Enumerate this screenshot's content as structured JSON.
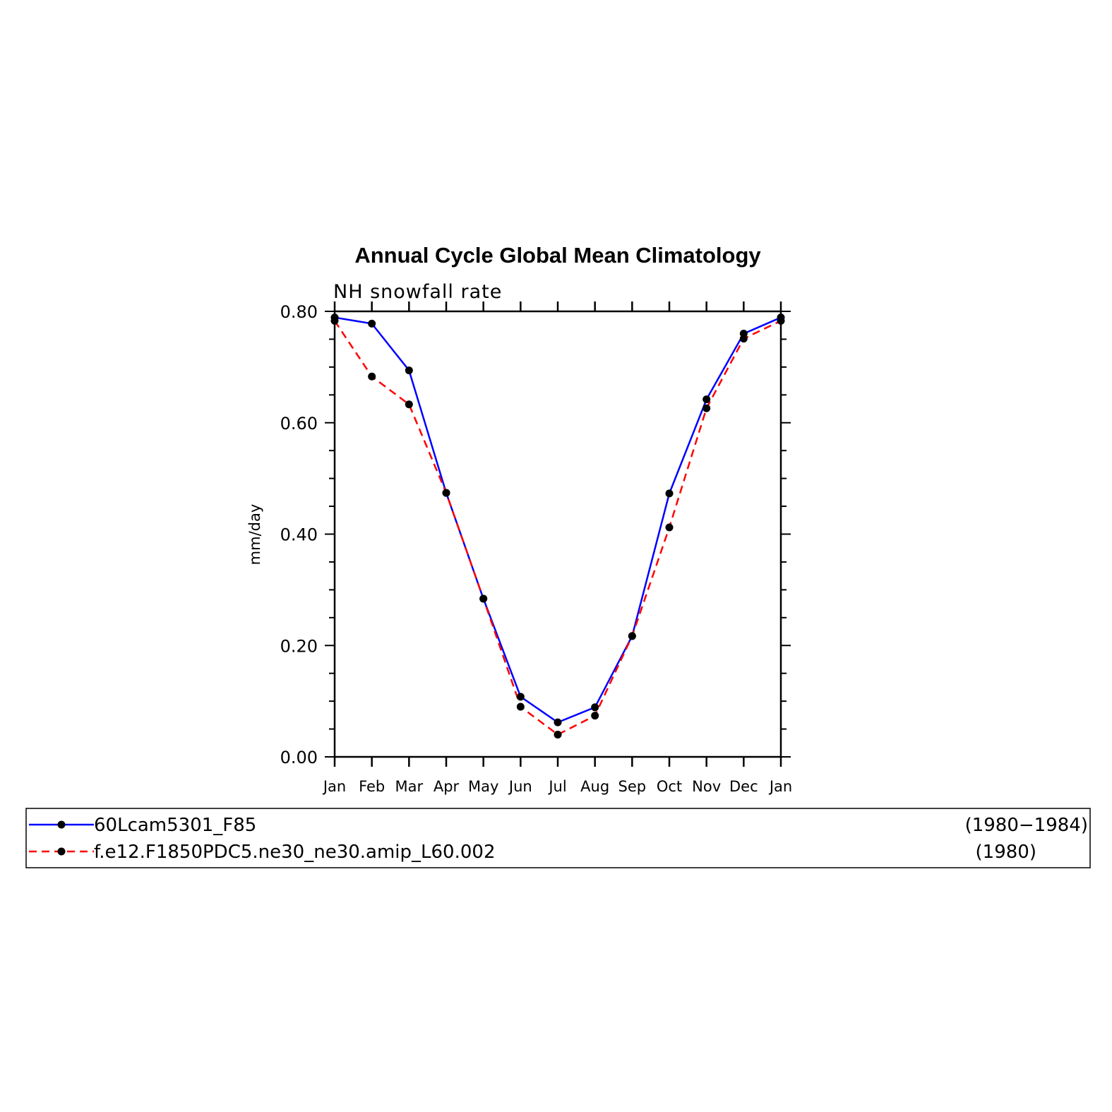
{
  "chart_data": {
    "type": "line",
    "title": "Annual Cycle Global Mean Climatology",
    "subtitle": "NH snowfall rate",
    "ylabel": "mm/day",
    "xlabel": "",
    "categories": [
      "Jan",
      "Feb",
      "Mar",
      "Apr",
      "May",
      "Jun",
      "Jul",
      "Aug",
      "Sep",
      "Oct",
      "Nov",
      "Dec",
      "Jan"
    ],
    "ylim": [
      0.0,
      0.8
    ],
    "yticks": [
      "0.00",
      "0.20",
      "0.40",
      "0.60",
      "0.80"
    ],
    "grid": false,
    "legend_position": "bottom",
    "series": [
      {
        "name": "60Lcam5301_F85",
        "period": "(1980−1984)",
        "color": "#0000ff",
        "dash": "solid",
        "values": [
          0.789,
          0.778,
          0.694,
          0.474,
          0.284,
          0.108,
          0.062,
          0.089,
          0.217,
          0.473,
          0.642,
          0.76,
          0.789
        ]
      },
      {
        "name": "f.e12.F1850PDC5.ne30_ne30.amip_L60.002",
        "period": "(1980)",
        "color": "#ff0000",
        "dash": "dashed",
        "values": [
          0.783,
          0.683,
          0.633,
          0.474,
          0.284,
          0.09,
          0.04,
          0.074,
          0.217,
          0.412,
          0.626,
          0.751,
          0.783
        ]
      }
    ]
  }
}
